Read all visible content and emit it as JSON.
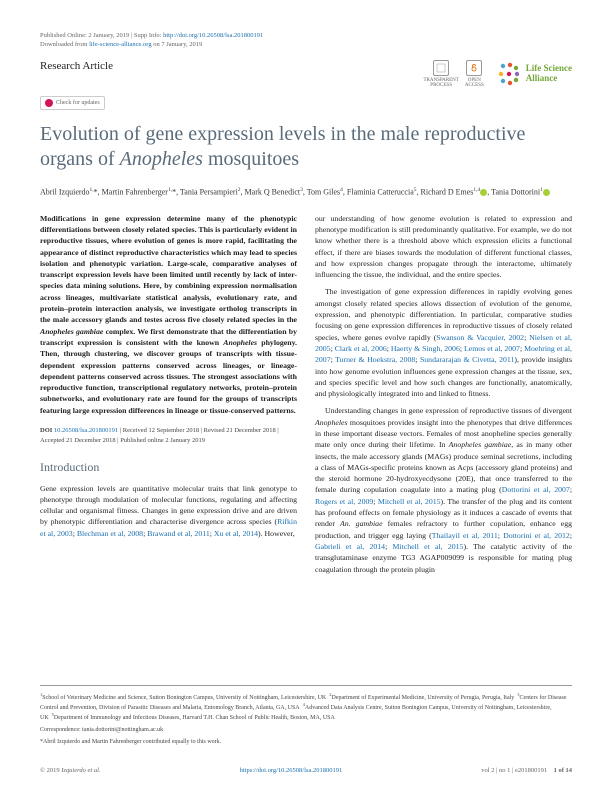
{
  "header": {
    "pub_line": "Published Online: 2 January, 2019 | Supp Info:",
    "supp_url": "http://doi.org/10.26508/lsa.201800191",
    "download_line_pre": "Downloaded from",
    "download_site": "life-science-alliance.org",
    "download_line_post": "on 7 January, 2019"
  },
  "article_type": "Research Article",
  "badges": {
    "transparent": "TRANSPARENT\nPROCESS",
    "open": "OPEN\nACCESS"
  },
  "logo": {
    "line1": "Life Science",
    "line2": "Alliance",
    "dot_colors": [
      "#4aa3d4",
      "#e4572e",
      "#74a738",
      "#f3b229",
      "#d4145a",
      "#8c6bb1",
      "#4aa3d4",
      "#e4572e",
      "#74a738"
    ]
  },
  "check_updates": "Check for updates",
  "title_html": "Evolution of gene expression levels in the male reproductive organs of <em>Anopheles</em> mosquitoes",
  "authors_html": "Abril Izquierdo<sup>1,</sup>*, Martin Fahrenberger<sup>1,</sup>*, Tania Persampieri<sup>2</sup>, Mark Q Benedict<sup>3</sup>, Tom Giles<sup>4</sup>, Flaminia Catteruccia<sup>5</sup>, Richard D Emes<sup>1,4</sup><span class=\"orcid\"></span>, Tania Dottorini<sup>1</sup><span class=\"orcid\"></span>",
  "abstract_html": "Modifications in gene expression determine many of the phenotypic differentiations between closely related species. This is particularly evident in reproductive tissues, where evolution of genes is more rapid, facilitating the appearance of distinct reproductive characteristics which may lead to species isolation and phenotypic variation. Large-scale, comparative analyses of transcript expression levels have been limited until recently by lack of inter-species data mining solutions. Here, by combining expression normalisation across lineages, multivariate statistical analysis, evolutionary rate, and protein–protein interaction analysis, we investigate ortholog transcripts in the male accessory glands and testes across five closely related species in the <em>Anopheles gambiae</em> complex. We first demonstrate that the differentiation by transcript expression is consistent with the known <em>Anopheles</em> phylogeny. Then, through clustering, we discover groups of transcripts with tissue-dependent expression patterns conserved across lineages, or lineage-dependent patterns conserved across tissues. The strongest associations with reproductive function, transcriptional regulatory networks, protein–protein subnetworks, and evolutionary rate are found for the groups of transcripts featuring large expression differences in lineage or tissue-conserved patterns.",
  "doi": {
    "label": "DOI",
    "url": "10.26508/lsa.201800191",
    "received": "Received 12 September 2018",
    "revised": "Revised 21 December 2018",
    "accepted": "Accepted 21 December 2018",
    "pub": "Published online 2 January 2019"
  },
  "intro_head": "Introduction",
  "intro_col1_html": "Gene expression levels are quantitative molecular traits that link genotype to phenotype through modulation of molecular functions, regulating and affecting cellular and organismal fitness. Changes in gene expression drive and are driven by phenotypic differentiation and characterise divergence across species (<span class=\"ref\">Rifkin et al, 2003</span>; <span class=\"ref\">Blechman et al, 2008</span>; <span class=\"ref\">Brawand et al, 2011</span>; <span class=\"ref\">Xu et al, 2014</span>). However,",
  "col2_p1_html": "our understanding of how genome evolution is related to expression and phenotype modification is still predominantly qualitative. For example, we do not know whether there is a threshold above which expression elicits a functional effect, if there are biases towards the modulation of different functional classes, and how expression changes propagate through the interactome, ultimately influencing the tissue, the individual, and the entire species.",
  "col2_p2_html": "The investigation of gene expression differences in rapidly evolving genes amongst closely related species allows dissection of evolution of the genome, expression, and phenotypic differentiation. In particular, comparative studies focusing on gene expression differences in reproductive tissues of closely related species, where genes evolve rapidly (<span class=\"ref\">Swanson & Vacquier, 2002</span>; <span class=\"ref\">Nielsen et al, 2005</span>; <span class=\"ref\">Clark et al, 2006</span>; <span class=\"ref\">Haerty & Singh, 2006</span>; <span class=\"ref\">Lemos et al, 2007</span>; <span class=\"ref\">Moehring et al, 2007</span>; <span class=\"ref\">Turner & Hoekstra, 2008</span>; <span class=\"ref\">Sundararajan & Civetta, 2011</span>), provide insights into how genome evolution influences gene expression changes at the tissue, sex, and species specific level and how such changes are functionally, anatomically, and physiologically integrated into and linked to fitness.",
  "col2_p3_html": "Understanding changes in gene expression of reproductive tissues of divergent <em>Anopheles</em> mosquitoes provides insight into the phenotypes that drive differences in these important disease vectors. Females of most anopheline species generally mate only once during their lifetime. In <em>Anopheles gambiae</em>, as in many other insects, the male accessory glands (MAGs) produce seminal secretions, including a class of MAGs-specific proteins known as Acps (accessory gland proteins) and the steroid hormone 20-hydroxyecdysone (20E), that once transferred to the female during copulation coagulate into a mating plug (<span class=\"ref\">Dottorini et al, 2007</span>; <span class=\"ref\">Rogers et al, 2009</span>; <span class=\"ref\">Mitchell et al, 2015</span>). The transfer of the plug and its content has profound effects on female physiology as it induces a cascade of events that render <em>An. gambiae</em> females refractory to further copulation, enhance egg production, and trigger egg laying (<span class=\"ref\">Thailayil et al, 2011</span>; <span class=\"ref\">Dottorini et al, 2012</span>; <span class=\"ref\">Gabrieli et al, 2014</span>; <span class=\"ref\">Mitchell et al, 2015</span>). The catalytic activity of the transglutaminase enzyme TG3 AGAP009099 is responsible for mating plug coagulation through the protein plugin",
  "affiliations_html": "<sup>1</sup>School of Veterinary Medicine and Science, Sutton Bonington Campus, University of Nottingham, Leicestershire, UK&nbsp;&nbsp;<sup>2</sup>Department of Experimental Medicine, University of Perugia, Perugia, Italy&nbsp;&nbsp;<sup>3</sup>Centers for Disease Control and Prevention, Division of Parasitic Diseases and Malaria, Entomology Branch, Atlanta, GA, USA&nbsp;&nbsp;<sup>4</sup>Advanced Data Analysis Centre, Sutton Bonington Campus, University of Nottingham, Leicestershire, UK&nbsp;&nbsp;<sup>5</sup>Department of Immunology and Infectious Diseases, Harvard T.H. Chan School of Public Health, Boston, MA, USA",
  "corr1": "Correspondence: tania.dottorini@nottingham.ac.uk",
  "corr2": "*Abril Izquierdo and Martin Fahrenberger contributed equally to this work.",
  "footer": {
    "left_pre": "© 2019",
    "left_auth": "Izquierdo et al.",
    "mid": "https://doi.org/10.26508/lsa.201800191",
    "vol": "vol 2 | no 1 | e201800191",
    "page": "1 of 14"
  }
}
